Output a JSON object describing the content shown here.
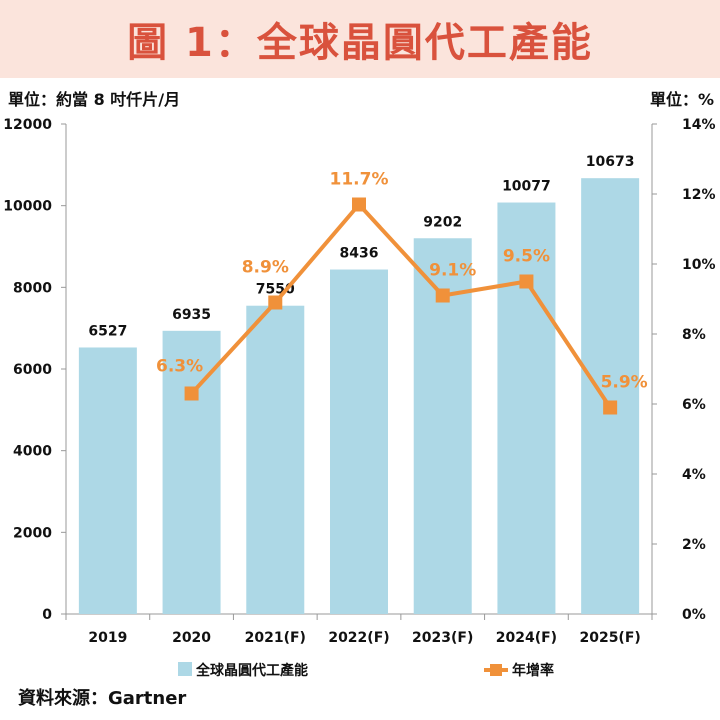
{
  "title": "圖 1：全球晶圓代工產能",
  "unit_left": "單位：約當 8 吋仟片/月",
  "unit_right": "單位：%",
  "source": "資料來源：Gartner",
  "colors": {
    "bar": "#add8e6",
    "line": "#f0913a",
    "title": "#d9523d",
    "title_bg": "#fbe4dc"
  },
  "chart_data": {
    "type": "bar",
    "categories": [
      "2019",
      "2020",
      "2021(F)",
      "2022(F)",
      "2023(F)",
      "2024(F)",
      "2025(F)"
    ],
    "series": [
      {
        "name": "全球晶圓代工產能",
        "type": "bar",
        "axis": "left",
        "values": [
          6527,
          6935,
          7550,
          8436,
          9202,
          10077,
          10673
        ],
        "labels": [
          "6527",
          "6935",
          "7550",
          "8436",
          "9202",
          "10077",
          "10673"
        ]
      },
      {
        "name": "年增率",
        "type": "line",
        "axis": "right",
        "values": [
          null,
          6.3,
          8.9,
          11.7,
          9.1,
          9.5,
          5.9
        ],
        "labels": [
          "",
          "6.3%",
          "8.9%",
          "11.7%",
          "9.1%",
          "9.5%",
          "5.9%"
        ]
      }
    ],
    "y_left": {
      "range": [
        0,
        12000
      ],
      "ticks": [
        "0",
        "2000",
        "4000",
        "6000",
        "8000",
        "10000",
        "12000"
      ]
    },
    "y_right": {
      "range": [
        0,
        14
      ],
      "ticks": [
        "0%",
        "2%",
        "4%",
        "6%",
        "8%",
        "10%",
        "12%",
        "14%"
      ]
    },
    "grid": false,
    "legend_position": "bottom"
  }
}
